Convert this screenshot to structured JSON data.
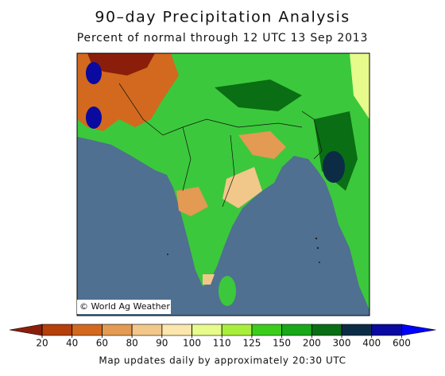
{
  "header": {
    "title": "90–day Precipitation Analysis",
    "subtitle": "Percent of normal through 12 UTC 13 Sep 2013"
  },
  "map": {
    "credit": "© World Ag Weather"
  },
  "legend": {
    "ticks": [
      20,
      40,
      60,
      80,
      90,
      100,
      110,
      125,
      150,
      200,
      300,
      400,
      600
    ],
    "colors": [
      "#8b1e0a",
      "#b4400c",
      "#d2691e",
      "#e39a52",
      "#f2c78a",
      "#fbe7ad",
      "#e6fb8c",
      "#a8ee3c",
      "#3ccc1c",
      "#18a818",
      "#0a6e14",
      "#0c2c46",
      "#0a0aa0",
      "#0000ff"
    ]
  },
  "footer": {
    "note": "Map updates daily by approximately 20:30 UTC"
  }
}
